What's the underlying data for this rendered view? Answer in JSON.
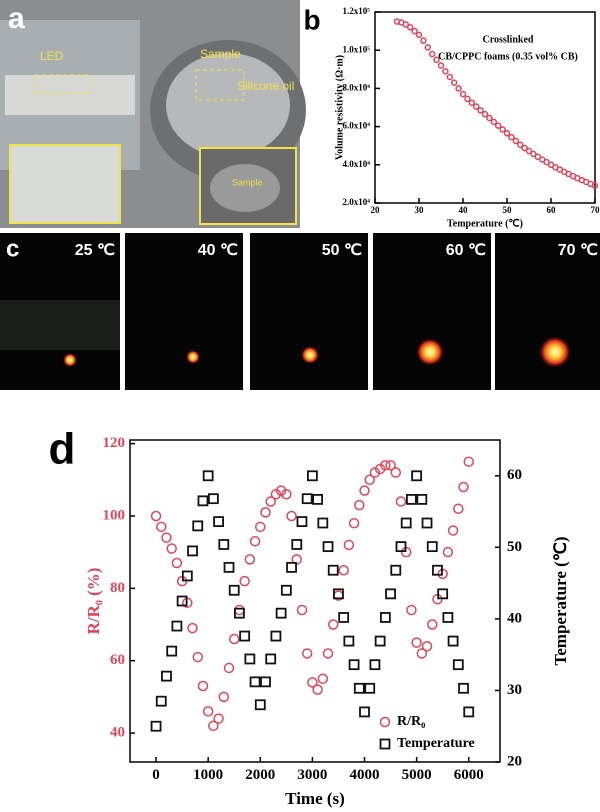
{
  "photo_a": {
    "letter": "a",
    "labels": [
      "LED",
      "Sample",
      "Silicone oil",
      "Sample"
    ]
  },
  "photo_c": {
    "letter": "c",
    "labels": [
      "25 ℃",
      "40 ℃",
      "50 ℃",
      "60 ℃",
      "70 ℃"
    ]
  },
  "chart_data": [
    {
      "type": "scatter",
      "panel_label": "b",
      "annotation": [
        "Crosslinked",
        "CB/CPPC foams (0.35 vol% CB)"
      ],
      "xlabel": "Temperature (℃)",
      "ylabel": "Volume resistivity (Ω·m)",
      "x": [
        25,
        26,
        27,
        28,
        29,
        30,
        31,
        32,
        33,
        34,
        35,
        36,
        37,
        38,
        39,
        40,
        41,
        42,
        43,
        44,
        45,
        46,
        47,
        48,
        49,
        50,
        51,
        52,
        53,
        54,
        55,
        56,
        57,
        58,
        59,
        60,
        61,
        62,
        63,
        64,
        65,
        66,
        67,
        68,
        69,
        70
      ],
      "values": [
        115000,
        114500,
        113500,
        112000,
        110000,
        108000,
        105000,
        101500,
        98000,
        95000,
        92000,
        89000,
        86000,
        83000,
        80000,
        77000,
        74500,
        72500,
        70500,
        68500,
        66500,
        64500,
        62500,
        60500,
        58500,
        56500,
        54500,
        52500,
        50500,
        48800,
        47200,
        45700,
        44200,
        42800,
        41400,
        40000,
        38700,
        37500,
        36300,
        35200,
        34100,
        33000,
        32000,
        31000,
        30000,
        29000
      ],
      "color": "#e0455a",
      "marker": "circle",
      "xlim": [
        20,
        70
      ],
      "xticks": [
        20,
        30,
        40,
        50,
        60,
        70
      ],
      "ylim": [
        20000,
        120000
      ],
      "yticks": [
        {
          "value": 20000,
          "label": "2.0x10⁴"
        },
        {
          "value": 40000,
          "label": "4.0x10⁴"
        },
        {
          "value": 60000,
          "label": "6.0x10⁴"
        },
        {
          "value": 80000,
          "label": "8.0x10⁴"
        },
        {
          "value": 100000,
          "label": "1.0x10⁵"
        },
        {
          "value": 120000,
          "label": "1.2x10⁵"
        }
      ]
    },
    {
      "type": "scatter",
      "panel_label": "d",
      "xlabel": "Time (s)",
      "ylabel": "R/R₀ (%)",
      "y2label": "Temperature (℃)",
      "x": [
        0,
        100,
        200,
        300,
        400,
        500,
        600,
        700,
        800,
        900,
        1000,
        1100,
        1200,
        1300,
        1400,
        1500,
        1600,
        1700,
        1800,
        1900,
        2000,
        2100,
        2200,
        2300,
        2400,
        2500,
        2600,
        2700,
        2800,
        2900,
        3000,
        3100,
        3200,
        3300,
        3400,
        3500,
        3600,
        3700,
        3800,
        3900,
        4000,
        4100,
        4200,
        4300,
        4400,
        4500,
        4600,
        4700,
        4800,
        4900,
        5000,
        5100,
        5200,
        5300,
        5400,
        5500,
        5600,
        5700,
        5800,
        5900,
        6000
      ],
      "series": [
        {
          "name": "R/R₀",
          "color": "#e0455a",
          "marker": "circle",
          "values": [
            100,
            97,
            94,
            91,
            87,
            82,
            76,
            69,
            61,
            53,
            46,
            42,
            44,
            50,
            58,
            66,
            74,
            82,
            88,
            93,
            97,
            101,
            104,
            106,
            107,
            106,
            100,
            88,
            74,
            62,
            54,
            52,
            55,
            62,
            70,
            78,
            85,
            92,
            98,
            103,
            107,
            110,
            112,
            113,
            114,
            114,
            112,
            104,
            90,
            74,
            65,
            62,
            64,
            70,
            77,
            84,
            90,
            96,
            102,
            108,
            115
          ]
        },
        {
          "name": "Temperature",
          "color": "#111111",
          "marker": "square",
          "axis": "y2",
          "values": [
            25,
            28.5,
            32,
            35.5,
            39,
            42.5,
            46,
            49.5,
            53,
            56.5,
            60,
            56.8,
            53.6,
            50.4,
            47.2,
            44,
            40.8,
            37.6,
            34.4,
            31.2,
            28,
            31.2,
            34.4,
            37.6,
            40.8,
            44,
            47.2,
            50.4,
            53.6,
            56.8,
            60,
            56.7,
            53.4,
            50.1,
            46.8,
            43.5,
            40.2,
            36.9,
            33.6,
            30.3,
            27,
            30.3,
            33.6,
            36.9,
            40.2,
            43.5,
            46.8,
            50.1,
            53.4,
            56.7,
            60,
            56.7,
            53.4,
            50.1,
            46.8,
            43.5,
            40.2,
            36.9,
            33.6,
            30.3,
            27
          ]
        }
      ],
      "xlim": [
        -500,
        6600
      ],
      "xticks": [
        0,
        1000,
        2000,
        3000,
        4000,
        5000,
        6000
      ],
      "ylim": [
        32,
        121
      ],
      "yticks": [
        40,
        60,
        80,
        100,
        120
      ],
      "y2lim": [
        20,
        65
      ],
      "y2ticks": [
        20,
        30,
        40,
        50,
        60
      ],
      "legend": "lower right"
    }
  ]
}
